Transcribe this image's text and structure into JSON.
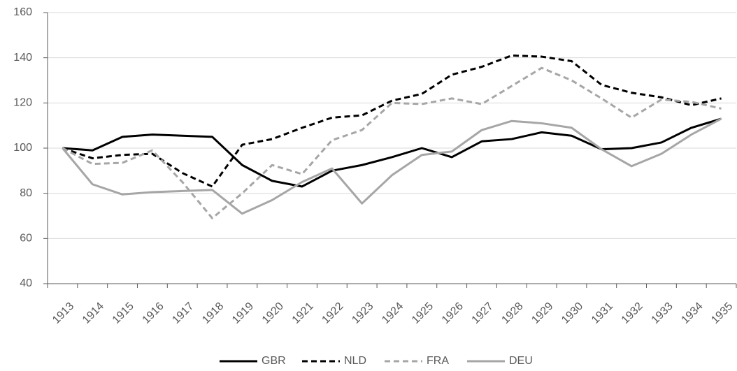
{
  "chart_data": {
    "type": "line",
    "categories": [
      "1913",
      "1914",
      "1915",
      "1916",
      "1917",
      "1918",
      "1919",
      "1920",
      "1921",
      "1922",
      "1923",
      "1924",
      "1925",
      "1926",
      "1927",
      "1928",
      "1929",
      "1930",
      "1931",
      "1932",
      "1933",
      "1934",
      "1935"
    ],
    "series": [
      {
        "name": "GBR",
        "color": "#000000",
        "dashed": false,
        "values": [
          100,
          99,
          105,
          106,
          105.5,
          105,
          92.5,
          85.5,
          83,
          90,
          92.5,
          96,
          100,
          96,
          103,
          104,
          107,
          105.5,
          99.5,
          100,
          102.5,
          109,
          113
        ]
      },
      {
        "name": "NLD",
        "color": "#000000",
        "dashed": true,
        "values": [
          100,
          95.5,
          97,
          97.5,
          89,
          83,
          101.5,
          104,
          109,
          113.5,
          114.5,
          121,
          124,
          132.5,
          136,
          141,
          140.5,
          138.5,
          128,
          124.5,
          122.5,
          119,
          122
        ]
      },
      {
        "name": "FRA",
        "color": "#a6a6a6",
        "dashed": true,
        "values": [
          100,
          93,
          93.5,
          99,
          85,
          69,
          80,
          92.5,
          88.5,
          103.5,
          108,
          120,
          119.5,
          122,
          119.5,
          127.5,
          135.5,
          130,
          122,
          113.5,
          121.5,
          120.5,
          117.5
        ]
      },
      {
        "name": "DEU",
        "color": "#a6a6a6",
        "dashed": false,
        "values": [
          100,
          84,
          79.5,
          80.5,
          81,
          81.5,
          71,
          77,
          85,
          91,
          75.5,
          88,
          97,
          98.5,
          108,
          112,
          111,
          109,
          99.5,
          92,
          97.5,
          106,
          113
        ]
      }
    ],
    "ylim": [
      40,
      160
    ],
    "yticks": [
      40,
      60,
      80,
      100,
      120,
      140,
      160
    ],
    "grid": true,
    "legend": "bottom"
  }
}
